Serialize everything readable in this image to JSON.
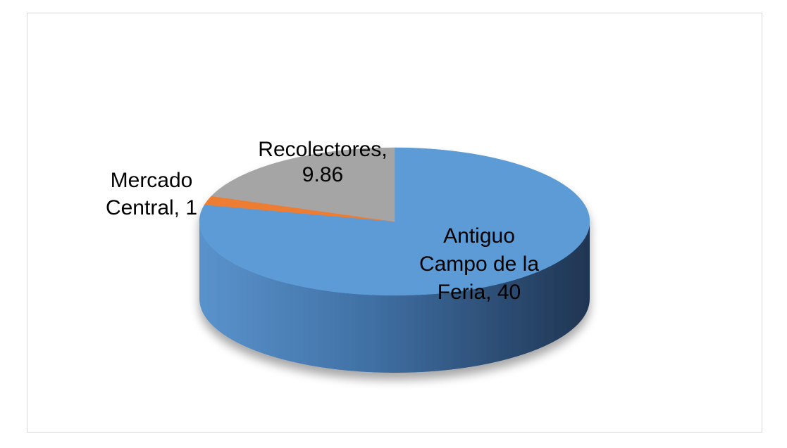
{
  "chart_data": {
    "type": "pie",
    "style": "3d",
    "title": "",
    "legend": "none",
    "slices": [
      {
        "name": "Antiguo Campo de la Feria",
        "value": 40,
        "label_lines": [
          "Antiguo",
          "Campo de la",
          "Feria, 40"
        ],
        "color": "#5b9bd5"
      },
      {
        "name": "Mercado Central",
        "value": 1,
        "label_lines": [
          "Mercado",
          "Central, 1"
        ],
        "color": "#ed7d31"
      },
      {
        "name": "Recolectores",
        "value": 9.86,
        "label_lines": [
          "Recolectores,",
          "9.86"
        ],
        "color": "#a5a5a5"
      }
    ]
  }
}
